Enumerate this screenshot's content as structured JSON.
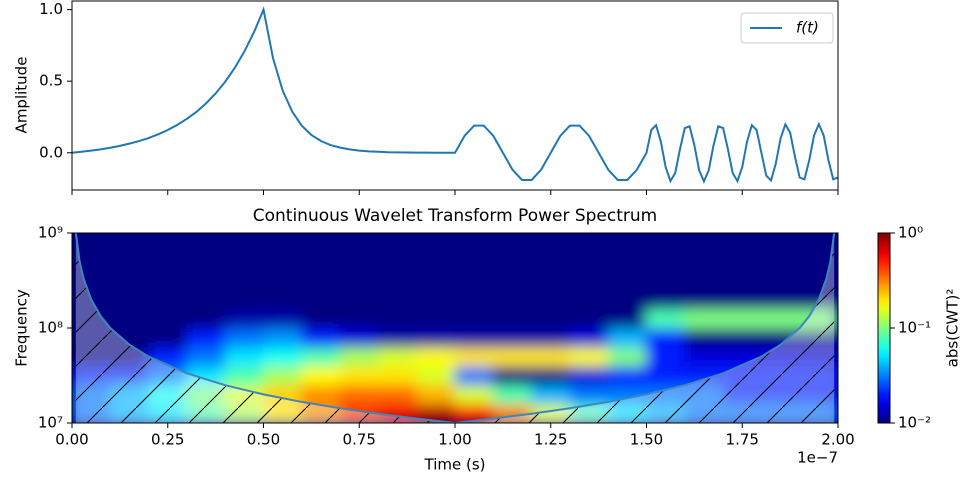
{
  "chart_data": [
    {
      "type": "line",
      "ylabel": "Amplitude",
      "xlim": [
        0,
        2
      ],
      "xticks": [
        0,
        0.25,
        0.5,
        0.75,
        1,
        1.25,
        1.5,
        1.75,
        2
      ],
      "ylim": [
        -0.26,
        1.06
      ],
      "yticks": [
        {
          "value": 0,
          "label": "0.0"
        },
        {
          "value": 0.5,
          "label": "0.5"
        },
        {
          "value": 1,
          "label": "1.0"
        }
      ],
      "legend": "upper right",
      "series": [
        {
          "name": "f(t)",
          "color": "#1f77b4",
          "x": [
            0,
            0.025,
            0.05,
            0.075,
            0.1,
            0.125,
            0.15,
            0.175,
            0.2,
            0.225,
            0.25,
            0.275,
            0.3,
            0.325,
            0.35,
            0.375,
            0.4,
            0.425,
            0.45,
            0.475,
            0.5,
            0.525,
            0.55,
            0.575,
            0.6,
            0.625,
            0.65,
            0.675,
            0.7,
            0.725,
            0.75,
            0.775,
            0.8,
            0.825,
            0.85,
            0.875,
            0.9,
            0.925,
            0.95,
            0.975,
            1,
            1.025,
            1.05,
            1.075,
            1.1,
            1.125,
            1.15,
            1.175,
            1.2,
            1.225,
            1.25,
            1.275,
            1.3,
            1.325,
            1.35,
            1.375,
            1.4,
            1.425,
            1.45,
            1.475,
            1.5,
            1.5125,
            1.525,
            1.5375,
            1.55,
            1.5625,
            1.575,
            1.5875,
            1.6,
            1.6125,
            1.625,
            1.6375,
            1.65,
            1.6625,
            1.675,
            1.6875,
            1.7,
            1.7125,
            1.725,
            1.7375,
            1.75,
            1.7625,
            1.775,
            1.7875,
            1.8,
            1.8125,
            1.825,
            1.8375,
            1.85,
            1.8625,
            1.875,
            1.8875,
            1.9,
            1.9125,
            1.925,
            1.9375,
            1.95,
            1.9625,
            1.975,
            1.9875,
            2
          ],
          "values": [
            0,
            0.007,
            0.015,
            0.024,
            0.035,
            0.048,
            0.064,
            0.082,
            0.103,
            0.129,
            0.159,
            0.195,
            0.237,
            0.286,
            0.345,
            0.414,
            0.496,
            0.593,
            0.707,
            0.841,
            1,
            0.659,
            0.435,
            0.287,
            0.189,
            0.124,
            0.082,
            0.054,
            0.036,
            0.024,
            0.015,
            0.01,
            0.007,
            0.004,
            0.003,
            0.002,
            0.001,
            0.001,
            0,
            0,
            0,
            0.118,
            0.19,
            0.19,
            0.118,
            0,
            -0.118,
            -0.19,
            -0.19,
            -0.118,
            0,
            0.118,
            0.19,
            0.19,
            0.118,
            0,
            -0.118,
            -0.19,
            -0.19,
            -0.118,
            0,
            0.159,
            0.193,
            0.077,
            -0.1,
            -0.198,
            -0.141,
            0.026,
            0.173,
            0.185,
            0.052,
            -0.122,
            -0.2,
            -0.122,
            0.052,
            0.185,
            0.173,
            0.026,
            -0.141,
            -0.198,
            -0.1,
            0.077,
            0.193,
            0.159,
            0,
            -0.159,
            -0.193,
            -0.077,
            0.1,
            0.198,
            0.141,
            -0.026,
            -0.173,
            -0.185,
            -0.052,
            0.122,
            0.2,
            0.122,
            -0.052,
            -0.185,
            -0.173
          ]
        }
      ]
    },
    {
      "type": "heatmap",
      "title": "Continuous Wavelet Transform Power Spectrum",
      "xlabel": "Time (s)",
      "ylabel": "Frequency",
      "x_offset_label": "1e−7",
      "xlim": [
        0,
        2
      ],
      "xticks": [
        {
          "value": 0,
          "label": "0.00"
        },
        {
          "value": 0.25,
          "label": "0.25"
        },
        {
          "value": 0.5,
          "label": "0.50"
        },
        {
          "value": 0.75,
          "label": "0.75"
        },
        {
          "value": 1,
          "label": "1.00"
        },
        {
          "value": 1.25,
          "label": "1.25"
        },
        {
          "value": 1.5,
          "label": "1.50"
        },
        {
          "value": 1.75,
          "label": "1.75"
        },
        {
          "value": 2,
          "label": "2.00"
        }
      ],
      "ylog": true,
      "ylim": [
        10000000,
        1000000000
      ],
      "yticks": [
        {
          "value": 10000000,
          "label": "10⁷"
        },
        {
          "value": 100000000,
          "label": "10⁸"
        },
        {
          "value": 1000000000,
          "label": "10⁹"
        }
      ],
      "colormap": "jet",
      "color_lim": [
        0.01,
        1
      ],
      "colorbar_label": "abs(CWT)²",
      "colorbar_ticks": [
        {
          "value": 1,
          "label": "10⁰"
        },
        {
          "value": 0.1,
          "label": "10⁻¹"
        },
        {
          "value": 0.01,
          "label": "10⁻²"
        }
      ],
      "x_edges": [
        0,
        0.1,
        0.2,
        0.3,
        0.4,
        0.5,
        0.6,
        0.7,
        0.8,
        0.9,
        1,
        1.1,
        1.2,
        1.3,
        1.4,
        1.5,
        1.6,
        1.7,
        1.8,
        1.9,
        2
      ],
      "y_edges": [
        10000000,
        15848932,
        25118864,
        39810717,
        63095734,
        100000000,
        158489319,
        251188643,
        398107171,
        630957344,
        1000000000
      ],
      "z": [
        [
          0.03,
          0.04,
          0.05,
          0.08,
          0.12,
          0.2,
          0.3,
          0.45,
          0.6,
          0.8,
          0.5,
          0.3,
          0.15,
          0.08,
          0.05,
          0.04,
          0.03,
          0.03,
          0.03,
          0.03
        ],
        [
          0.03,
          0.04,
          0.06,
          0.1,
          0.15,
          0.22,
          0.3,
          0.35,
          0.35,
          0.25,
          0.15,
          0.08,
          0.04,
          0.03,
          0.03,
          0.03,
          0.03,
          0.02,
          0.02,
          0.02
        ],
        [
          0.02,
          0.02,
          0.03,
          0.05,
          0.08,
          0.12,
          0.18,
          0.2,
          0.2,
          0.15,
          0.03,
          0.01,
          0.01,
          0.015,
          0.02,
          0.02,
          0.02,
          0.02,
          0.02,
          0.02
        ],
        [
          0.01,
          0.01,
          0.02,
          0.03,
          0.05,
          0.06,
          0.08,
          0.12,
          0.15,
          0.18,
          0.2,
          0.2,
          0.2,
          0.18,
          0.1,
          0.02,
          0.015,
          0.015,
          0.015,
          0.015
        ],
        [
          0.01,
          0.01,
          0.01,
          0.02,
          0.03,
          0.035,
          0.02,
          0.015,
          0.012,
          0.012,
          0.012,
          0.012,
          0.012,
          0.015,
          0.04,
          0.02,
          0.01,
          0.01,
          0.01,
          0.01
        ],
        [
          0.01,
          0.01,
          0.01,
          0.01,
          0.012,
          0.012,
          0.01,
          0.01,
          0.01,
          0.01,
          0.01,
          0.01,
          0.01,
          0.01,
          0.01,
          0.08,
          0.1,
          0.1,
          0.1,
          0.1
        ],
        [
          0.01,
          0.01,
          0.01,
          0.01,
          0.01,
          0.01,
          0.01,
          0.01,
          0.01,
          0.01,
          0.01,
          0.01,
          0.01,
          0.01,
          0.01,
          0.01,
          0.01,
          0.01,
          0.01,
          0.01
        ],
        [
          0.01,
          0.01,
          0.01,
          0.01,
          0.01,
          0.01,
          0.01,
          0.01,
          0.01,
          0.01,
          0.01,
          0.01,
          0.01,
          0.01,
          0.01,
          0.01,
          0.01,
          0.01,
          0.01,
          0.01
        ],
        [
          0.01,
          0.01,
          0.01,
          0.01,
          0.01,
          0.01,
          0.01,
          0.01,
          0.01,
          0.01,
          0.01,
          0.01,
          0.01,
          0.01,
          0.01,
          0.01,
          0.01,
          0.01,
          0.01,
          0.01
        ],
        [
          0.01,
          0.01,
          0.01,
          0.01,
          0.01,
          0.01,
          0.01,
          0.01,
          0.01,
          0.01,
          0.01,
          0.01,
          0.01,
          0.01,
          0.01,
          0.01,
          0.01,
          0.01,
          0.01,
          0.01
        ]
      ],
      "coi": {
        "color": "#3f86bf",
        "x": [
          0.01,
          0.02,
          0.03,
          0.05,
          0.075,
          0.1,
          0.15,
          0.2,
          0.3,
          0.4,
          0.5,
          0.6,
          0.7,
          0.8,
          0.9,
          1,
          1.1,
          1.2,
          1.3,
          1.4,
          1.5,
          1.6,
          1.7,
          1.8,
          1.85,
          1.9,
          1.925,
          1.95,
          1.97,
          1.98,
          1.99
        ],
        "y": [
          1000000000,
          500000000,
          333333333,
          200000000,
          133333333,
          100000000,
          66666667,
          50000000,
          33333333,
          25000000,
          20000000,
          16666667,
          14285714,
          12500000,
          11111111,
          10000000,
          11111111,
          12500000,
          14285714,
          16666667,
          20000000,
          25000000,
          33333333,
          50000000,
          66666667,
          100000000,
          133333333,
          200000000,
          333333333,
          500000000,
          1000000000
        ]
      }
    }
  ]
}
